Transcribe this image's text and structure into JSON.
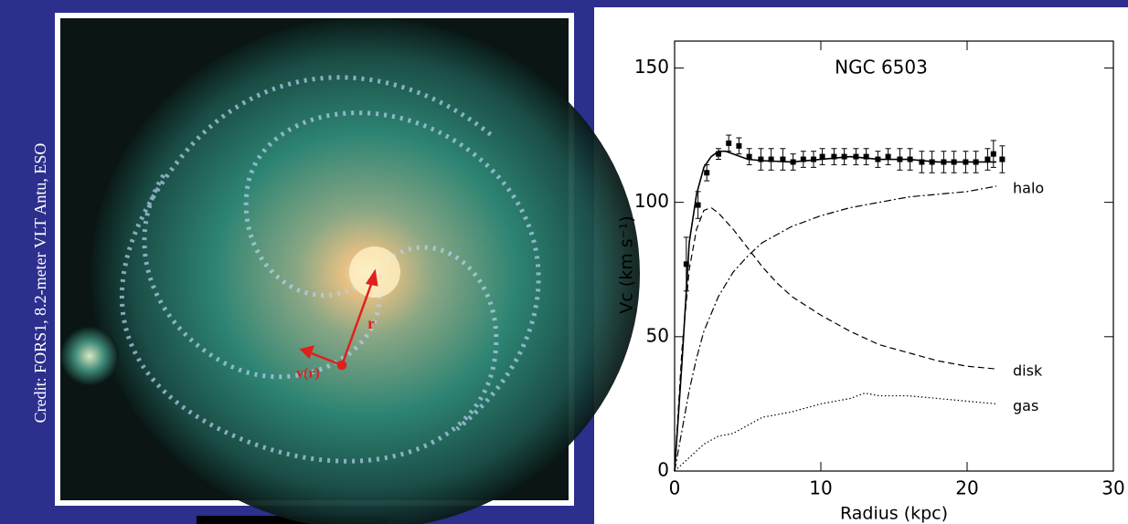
{
  "image": {
    "credit": "Credit: FORS1, 8.2-meter VLT Antu, ESO",
    "radius_label": "r",
    "velocity_label": "v(r)"
  },
  "chart_data": {
    "type": "line",
    "title": "NGC 6503",
    "x_label": "Radius (kpc)",
    "y_label": "Vc (km s⁻¹)",
    "xlim": [
      0,
      30
    ],
    "ylim": [
      0,
      160
    ],
    "xticks": [
      0,
      10,
      20,
      30
    ],
    "yticks": [
      0,
      50,
      100,
      150
    ],
    "grid": false,
    "series": [
      {
        "style": "points",
        "color": "#000000",
        "x": [
          0.8,
          1.6,
          2.2,
          3.0,
          3.7,
          4.4,
          5.1,
          5.9,
          6.6,
          7.4,
          8.1,
          8.8,
          9.5,
          10.1,
          10.9,
          11.6,
          12.4,
          13.1,
          13.9,
          14.6,
          15.4,
          16.1,
          16.9,
          17.6,
          18.4,
          19.1,
          19.9,
          20.6,
          21.4,
          21.8,
          22.4
        ],
        "values": [
          77,
          99,
          111,
          118,
          122,
          121,
          117,
          116,
          116,
          116,
          115,
          116,
          116,
          117,
          117,
          117,
          117,
          117,
          116,
          117,
          116,
          116,
          115,
          115,
          115,
          115,
          115,
          115,
          116,
          118,
          116
        ],
        "errors": [
          10,
          5,
          3,
          2,
          3,
          3,
          3,
          4,
          4,
          4,
          3,
          3,
          3,
          3,
          3,
          3,
          3,
          3,
          3,
          3,
          4,
          4,
          4,
          4,
          4,
          4,
          4,
          4,
          4,
          5,
          5
        ]
      },
      {
        "style": "solid",
        "color": "#000000",
        "x": [
          0,
          0.5,
          1,
          1.5,
          2,
          2.5,
          3,
          3.5,
          4,
          5,
          6,
          8,
          10,
          12,
          14,
          16,
          18,
          20,
          22
        ],
        "values": [
          0,
          40,
          85,
          103,
          113,
          117,
          119,
          119,
          118,
          116,
          115.5,
          115,
          116,
          117,
          116,
          116,
          115,
          115,
          115
        ]
      },
      {
        "name": "halo",
        "style": "dashdot",
        "color": "#000000",
        "x": [
          0,
          0.5,
          1,
          1.5,
          2,
          3,
          4,
          5,
          6,
          8,
          10,
          12,
          14,
          16,
          18,
          20,
          22
        ],
        "values": [
          0,
          15,
          30,
          42,
          52,
          65,
          74,
          80,
          85,
          91,
          95,
          98,
          100,
          102,
          103,
          104,
          106
        ]
      },
      {
        "name": "disk",
        "style": "dash",
        "color": "#000000",
        "x": [
          0,
          0.5,
          1,
          1.5,
          2,
          2.5,
          3,
          4,
          5,
          6,
          7,
          8,
          10,
          12,
          14,
          16,
          18,
          20,
          22
        ],
        "values": [
          0,
          45,
          75,
          90,
          97,
          98,
          96,
          90,
          83,
          76,
          70,
          65,
          58,
          52,
          47,
          44,
          41,
          39,
          38
        ]
      },
      {
        "name": "gas",
        "style": "dot",
        "color": "#000000",
        "x": [
          0,
          1,
          2,
          3,
          4,
          5,
          6,
          8,
          10,
          12,
          13,
          14,
          16,
          18,
          20,
          22
        ],
        "values": [
          0,
          5,
          10,
          13,
          14,
          17,
          20,
          22,
          25,
          27,
          29,
          28,
          28,
          27,
          26,
          25
        ]
      }
    ]
  }
}
